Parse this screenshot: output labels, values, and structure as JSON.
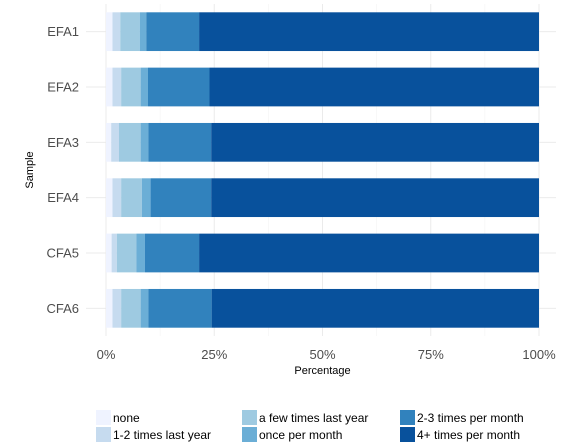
{
  "chart_data": {
    "type": "bar",
    "orientation": "horizontal",
    "stacked": true,
    "categories": [
      "EFA1",
      "EFA2",
      "EFA3",
      "EFA4",
      "CFA5",
      "CFA6"
    ],
    "xlabel": "Percentage",
    "ylabel": "Sample",
    "xlim": [
      0,
      100
    ],
    "x_ticks": [
      "0%",
      "25%",
      "50%",
      "75%",
      "100%"
    ],
    "x_tick_values": [
      0,
      25,
      50,
      75,
      100
    ],
    "grid": true,
    "legend_position": "bottom",
    "series": [
      {
        "name": "none",
        "color": "#eff3ff",
        "values": [
          1.5,
          1.5,
          1.2,
          1.5,
          1.3,
          1.5
        ]
      },
      {
        "name": "1-2 times last year",
        "color": "#c6dbef",
        "values": [
          1.8,
          2.0,
          1.8,
          2.0,
          1.2,
          2.0
        ]
      },
      {
        "name": "a few times last year",
        "color": "#9ecae1",
        "values": [
          4.5,
          4.5,
          5.0,
          4.8,
          4.5,
          4.5
        ]
      },
      {
        "name": "once per month",
        "color": "#6baed6",
        "values": [
          1.5,
          1.7,
          1.8,
          2.0,
          2.0,
          1.8
        ]
      },
      {
        "name": "2-3 times per month",
        "color": "#3182bd",
        "values": [
          12.2,
          14.2,
          14.5,
          14.0,
          12.5,
          14.6
        ]
      },
      {
        "name": "4+ times per month",
        "color": "#08519c",
        "values": [
          78.5,
          76.1,
          75.7,
          75.7,
          78.5,
          75.6
        ]
      }
    ]
  }
}
